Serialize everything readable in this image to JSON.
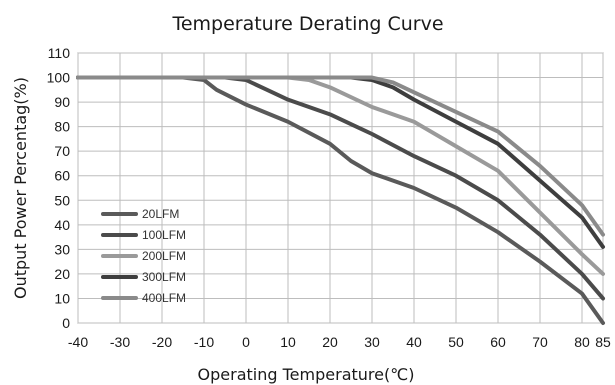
{
  "chart_data": {
    "type": "line",
    "title": "Temperature Derating Curve",
    "xlabel": "Operating Temperature(℃)",
    "ylabel": "Output Power Percentag(%)",
    "xlim": [
      -40,
      85
    ],
    "ylim": [
      0,
      110
    ],
    "x_ticks": [
      "-40",
      "-30",
      "-20",
      "-10",
      "0",
      "10",
      "20",
      "30",
      "40",
      "50",
      "60",
      "70",
      "80",
      "85"
    ],
    "y_ticks": [
      "0",
      "10",
      "20",
      "30",
      "40",
      "50",
      "60",
      "70",
      "80",
      "90",
      "100",
      "110"
    ],
    "x_tick_values": [
      -40,
      -30,
      -20,
      -10,
      0,
      10,
      20,
      30,
      40,
      50,
      60,
      70,
      80,
      85
    ],
    "y_tick_values": [
      0,
      10,
      20,
      30,
      40,
      50,
      60,
      70,
      80,
      90,
      100,
      110
    ],
    "grid": true,
    "legend_position": "bottom-left",
    "series": [
      {
        "name": "20LFM",
        "color": "#5a5a5a",
        "points": [
          [
            -40,
            100
          ],
          [
            -15,
            100
          ],
          [
            -10,
            99
          ],
          [
            -7,
            95
          ],
          [
            0,
            89
          ],
          [
            10,
            82
          ],
          [
            20,
            73
          ],
          [
            25,
            66
          ],
          [
            30,
            61
          ],
          [
            40,
            55
          ],
          [
            50,
            47
          ],
          [
            60,
            37
          ],
          [
            70,
            25
          ],
          [
            80,
            12
          ],
          [
            85,
            0
          ]
        ]
      },
      {
        "name": "100LFM",
        "color": "#4b4b4b",
        "points": [
          [
            -40,
            100
          ],
          [
            -5,
            100
          ],
          [
            0,
            99
          ],
          [
            5,
            95
          ],
          [
            10,
            91
          ],
          [
            20,
            85
          ],
          [
            30,
            77
          ],
          [
            40,
            68
          ],
          [
            50,
            60
          ],
          [
            60,
            50
          ],
          [
            70,
            36
          ],
          [
            80,
            20
          ],
          [
            85,
            10
          ]
        ]
      },
      {
        "name": "200LFM",
        "color": "#9a9a9a",
        "points": [
          [
            -40,
            100
          ],
          [
            10,
            100
          ],
          [
            15,
            99
          ],
          [
            20,
            96
          ],
          [
            30,
            88
          ],
          [
            40,
            82
          ],
          [
            50,
            72
          ],
          [
            60,
            62
          ],
          [
            70,
            45
          ],
          [
            80,
            28
          ],
          [
            85,
            20
          ]
        ]
      },
      {
        "name": "300LFM",
        "color": "#3e3e3e",
        "points": [
          [
            -40,
            100
          ],
          [
            25,
            100
          ],
          [
            30,
            99
          ],
          [
            35,
            96
          ],
          [
            40,
            91
          ],
          [
            50,
            82
          ],
          [
            60,
            73
          ],
          [
            70,
            58
          ],
          [
            80,
            43
          ],
          [
            85,
            31
          ]
        ]
      },
      {
        "name": "400LFM",
        "color": "#8a8a8a",
        "points": [
          [
            -40,
            100
          ],
          [
            25,
            100
          ],
          [
            30,
            100
          ],
          [
            35,
            98
          ],
          [
            40,
            94
          ],
          [
            50,
            86
          ],
          [
            60,
            78
          ],
          [
            70,
            64
          ],
          [
            80,
            48
          ],
          [
            85,
            36
          ]
        ]
      }
    ]
  }
}
